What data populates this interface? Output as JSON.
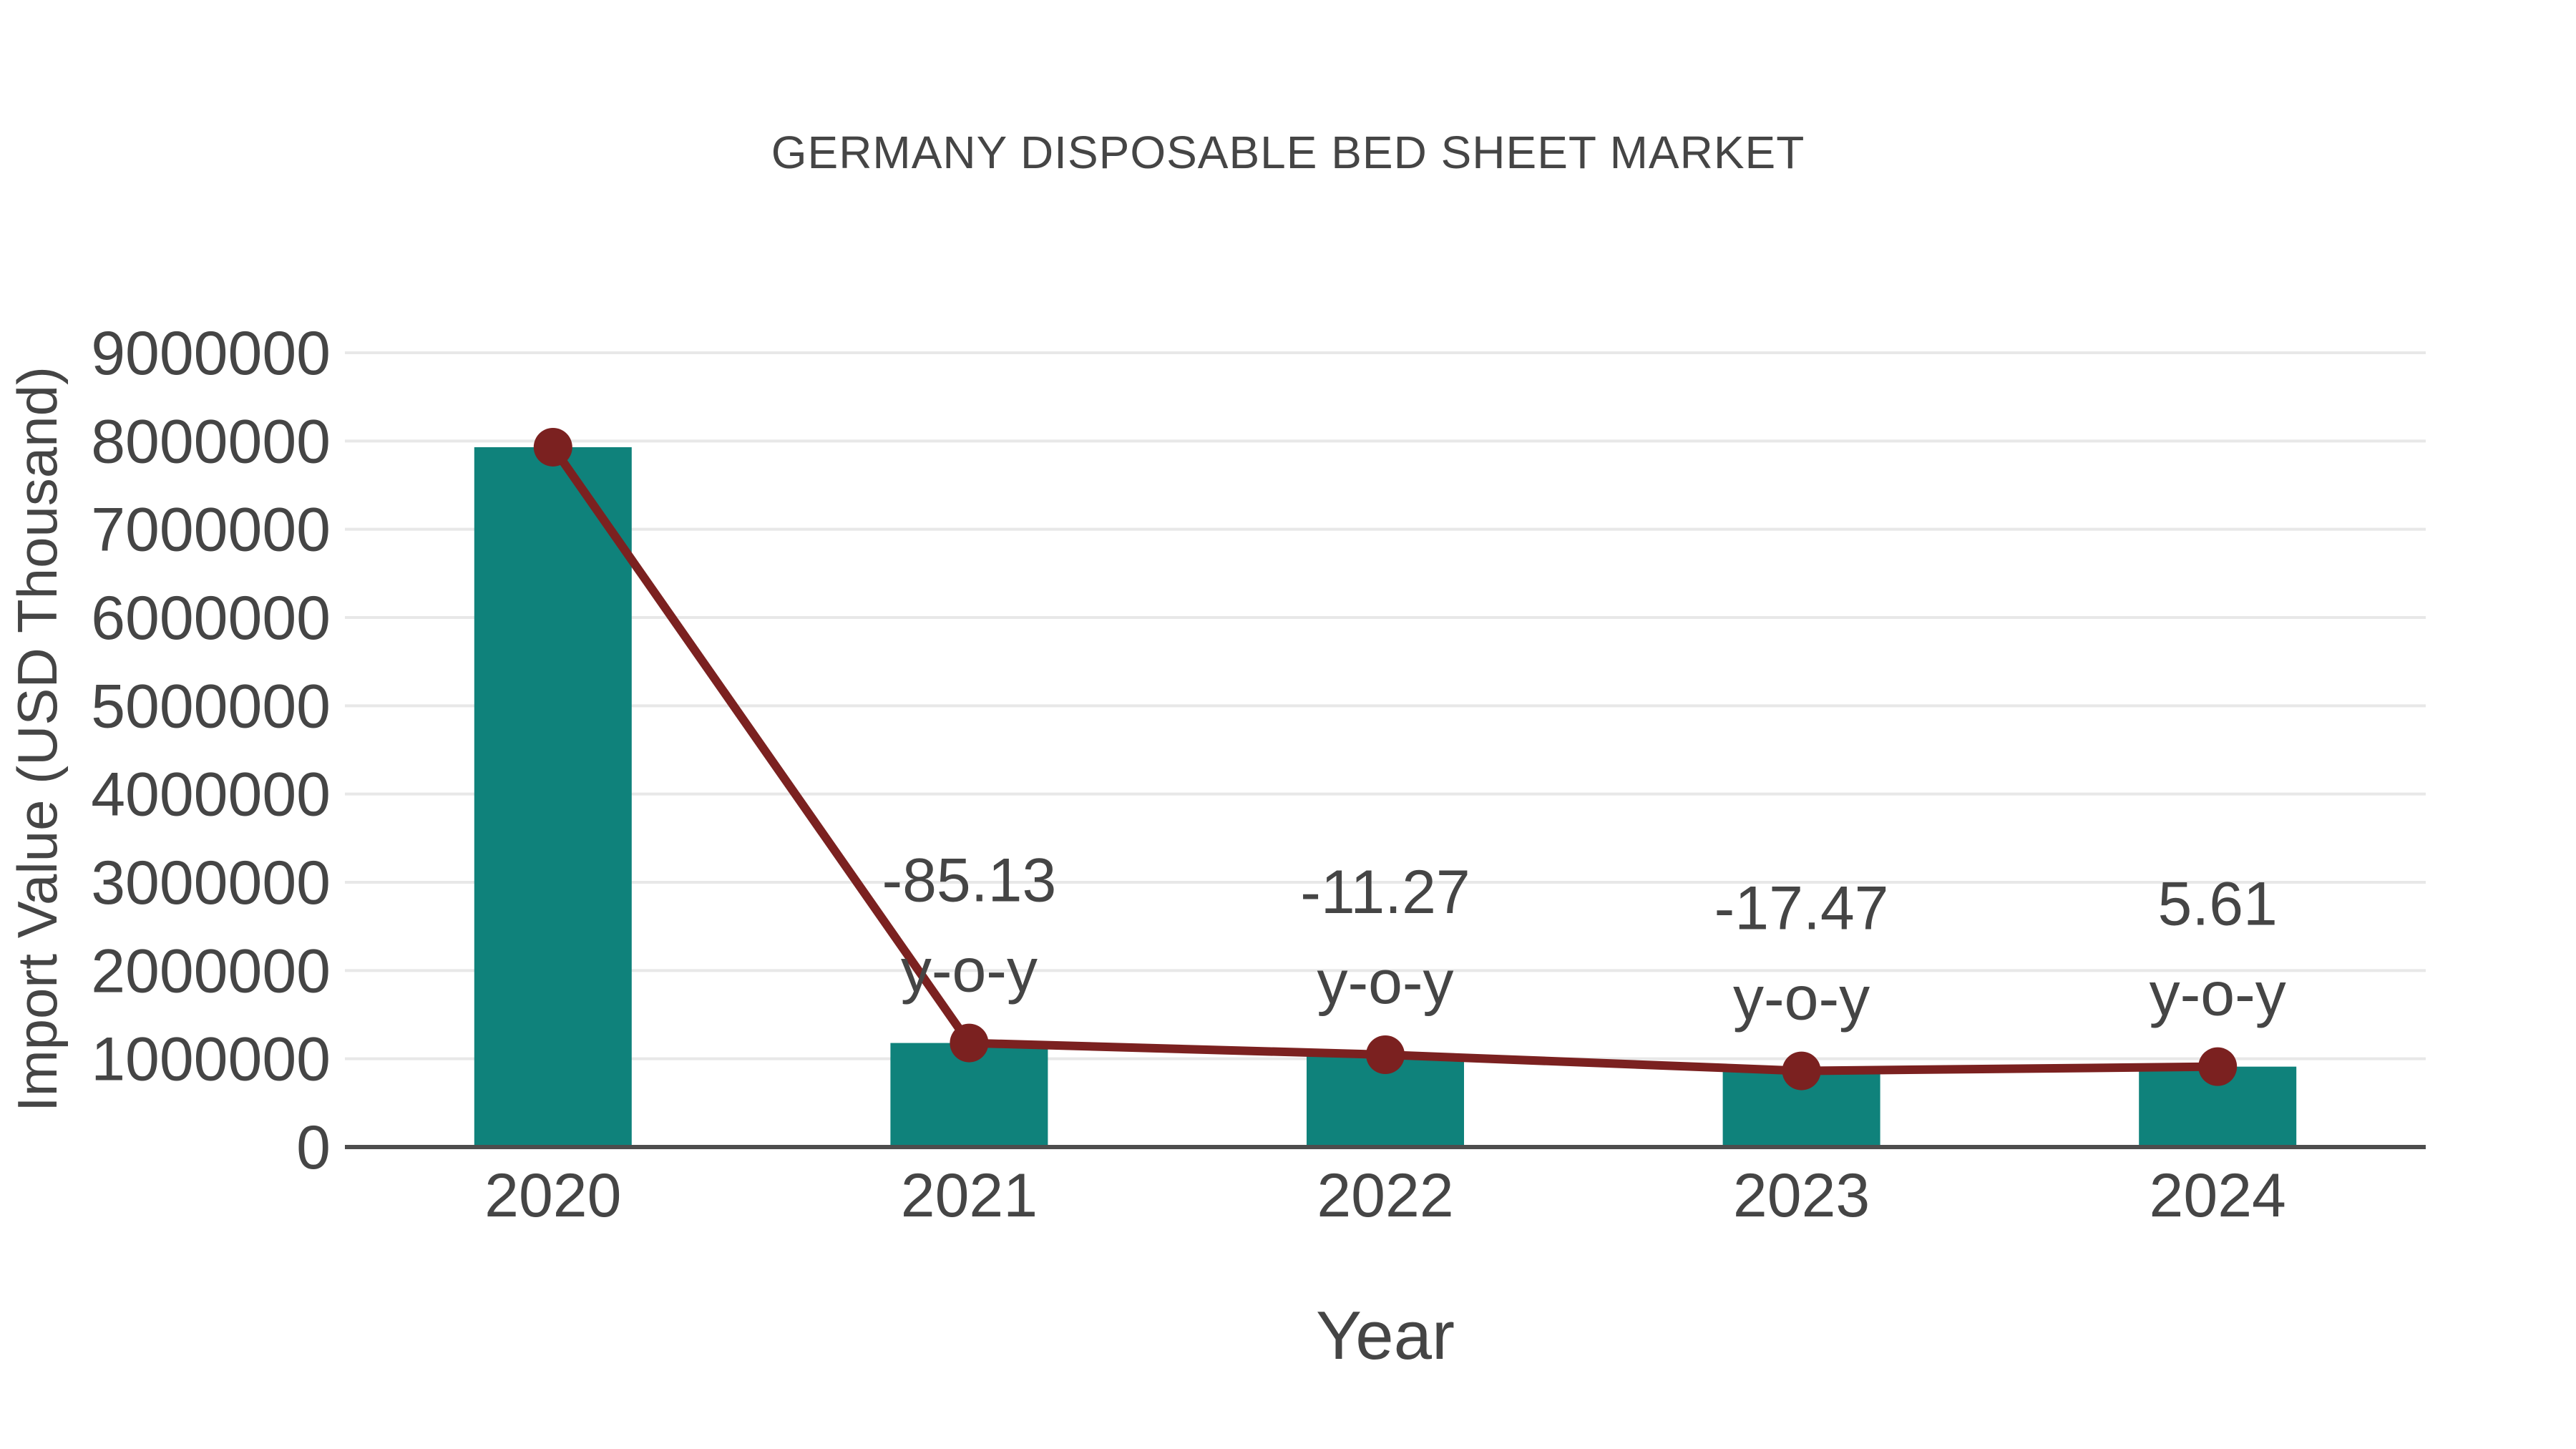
{
  "chart_data": {
    "type": "bar-line-combo",
    "title": "GERMANY DISPOSABLE BED SHEET MARKET",
    "xlabel": "Year",
    "ylabel": "Import Value (USD Thousand)",
    "categories": [
      "2020",
      "2021",
      "2022",
      "2023",
      "2024"
    ],
    "series": [
      {
        "name": "Import Value bars",
        "type": "bar",
        "color": "#0F827B",
        "values": [
          7930000,
          1179000,
          1046000,
          863000,
          911000
        ]
      },
      {
        "name": "Import Value trend line",
        "type": "line",
        "color": "#7B2120",
        "marker": "circle",
        "values": [
          7930000,
          1179000,
          1046000,
          863000,
          911000
        ]
      }
    ],
    "annotations": [
      {
        "category": "2021",
        "value": "-85.13",
        "suffix": "y-o-y"
      },
      {
        "category": "2022",
        "value": "-11.27",
        "suffix": "y-o-y"
      },
      {
        "category": "2023",
        "value": "-17.47",
        "suffix": "y-o-y"
      },
      {
        "category": "2024",
        "value": "5.61",
        "suffix": "y-o-y"
      }
    ],
    "ylim": [
      0,
      9000000
    ],
    "ytick_values": [
      0,
      1000000,
      2000000,
      3000000,
      4000000,
      5000000,
      6000000,
      7000000,
      8000000,
      9000000
    ],
    "grid": "horizontal",
    "legend": "none"
  },
  "style": {
    "background": "#ffffff",
    "bar_color": "#0F827B",
    "line_color": "#7B2120",
    "text_color": "#454545",
    "grid_color": "#e8e8e8",
    "axis_color": "#4d4d4d"
  }
}
